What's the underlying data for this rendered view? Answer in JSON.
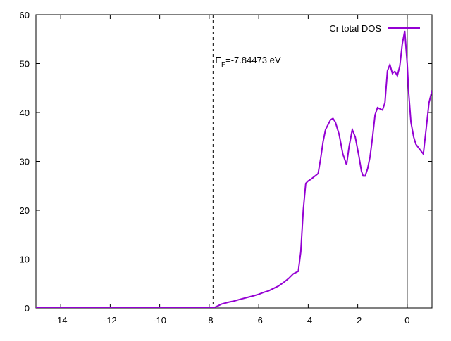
{
  "chart_data": {
    "type": "line",
    "series": [
      {
        "name": "Cr total DOS",
        "color": "#9400d3",
        "x": [
          -15,
          -7.84,
          -7.7,
          -7.5,
          -7.2,
          -7,
          -6.8,
          -6.5,
          -6.2,
          -6,
          -5.8,
          -5.6,
          -5.4,
          -5.2,
          -5,
          -4.8,
          -4.6,
          -4.4,
          -4.3,
          -4.2,
          -4.1,
          -4.0,
          -3.9,
          -3.6,
          -3.5,
          -3.4,
          -3.3,
          -3.1,
          -3.0,
          -2.9,
          -2.75,
          -2.6,
          -2.45,
          -2.35,
          -2.22,
          -2.1,
          -1.95,
          -1.85,
          -1.78,
          -1.7,
          -1.6,
          -1.5,
          -1.4,
          -1.3,
          -1.2,
          -1.0,
          -0.9,
          -0.8,
          -0.7,
          -0.6,
          -0.5,
          -0.4,
          -0.3,
          -0.2,
          -0.1,
          0,
          0.06,
          0.15,
          0.26,
          0.35,
          0.5,
          0.65,
          0.75,
          0.88,
          1
        ],
        "values": [
          0,
          0,
          0.3,
          0.8,
          1.2,
          1.4,
          1.7,
          2.1,
          2.5,
          2.8,
          3.2,
          3.5,
          4,
          4.5,
          5.2,
          6,
          7,
          7.5,
          11.5,
          20,
          25.5,
          26,
          26.3,
          27.5,
          30.5,
          34,
          36.5,
          38.5,
          38.8,
          38,
          35.5,
          31.5,
          29.3,
          33,
          36.5,
          35,
          31,
          28,
          27,
          27,
          28.5,
          31,
          35,
          39.5,
          41,
          40.5,
          42,
          48.5,
          49.8,
          48,
          48.4,
          47.5,
          49.5,
          54,
          56.7,
          50,
          44,
          38,
          35,
          33.5,
          32.5,
          31.5,
          36,
          42,
          44.5
        ]
      }
    ],
    "xlim": [
      -15,
      1
    ],
    "ylim": [
      0,
      60
    ],
    "xticks": [
      -14,
      -12,
      -10,
      -8,
      -6,
      -4,
      -2,
      0
    ],
    "yticks": [
      0,
      10,
      20,
      30,
      40,
      50,
      60
    ],
    "fermi_level": -7.84473,
    "annotation": {
      "main": "E",
      "subscript": "F",
      "rest": "=-7.84473 eV"
    },
    "zero_line": true,
    "legend": "top-right"
  }
}
